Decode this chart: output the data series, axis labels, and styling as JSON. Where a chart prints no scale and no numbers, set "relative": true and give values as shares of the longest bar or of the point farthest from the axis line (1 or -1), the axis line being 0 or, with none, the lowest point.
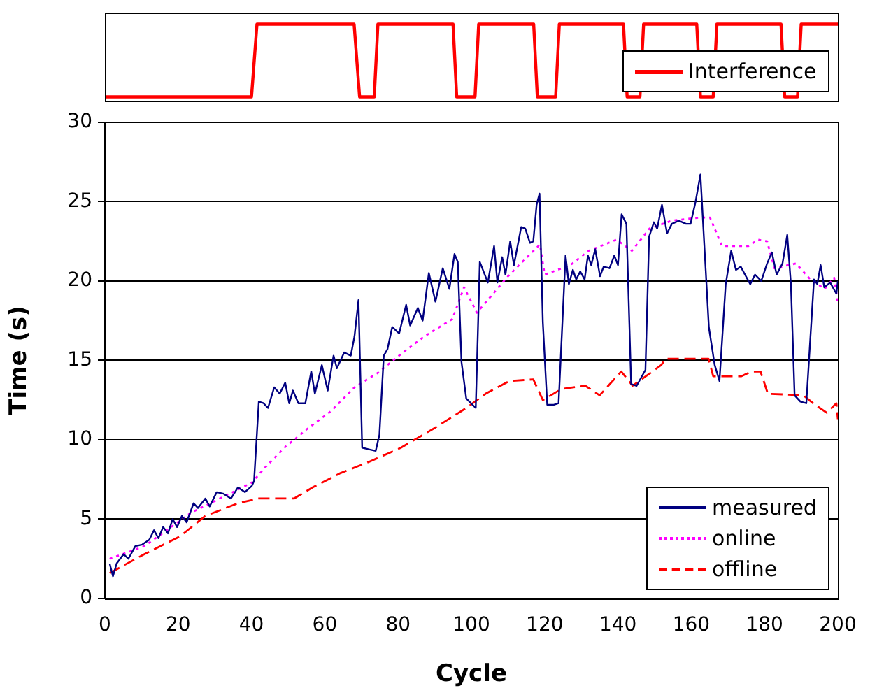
{
  "chart_data": [
    {
      "type": "line",
      "relative": true,
      "xlim": [
        0,
        200
      ],
      "tick_labels": false,
      "legend": "bottom right",
      "line_style": "solid",
      "series": [
        {
          "name": "Interference",
          "color": "#ff0000",
          "x": [
            0,
            40,
            41.5,
            68,
            69.5,
            73.5,
            74.5,
            95,
            96,
            101,
            102,
            117,
            118,
            123,
            124,
            141.5,
            142.5,
            146,
            147,
            161.5,
            162.5,
            166,
            167,
            184.5,
            185.5,
            189,
            190,
            200
          ],
          "values": [
            0.05,
            0.05,
            1,
            1,
            0.05,
            0.05,
            1,
            1,
            0.05,
            0.05,
            1,
            1,
            0.05,
            0.05,
            1,
            1,
            0.05,
            0.05,
            1,
            1,
            0.05,
            0.05,
            1,
            1,
            0.05,
            0.05,
            1,
            1
          ]
        }
      ]
    },
    {
      "type": "line",
      "xlabel": "Cycle",
      "ylabel": "Time (s)",
      "xlim": [
        0,
        200
      ],
      "xticks": [
        0,
        20,
        40,
        60,
        80,
        100,
        120,
        140,
        160,
        180,
        200
      ],
      "ylim": [
        0,
        30
      ],
      "yticks": [
        0,
        5,
        10,
        15,
        20,
        25,
        30
      ],
      "grid": "y",
      "legend": "bottom right",
      "marker": "none",
      "series": [
        {
          "name": "measured",
          "color": "#000080",
          "line_style": "solid",
          "x": [
            1.3,
            2.2,
            3.2,
            5.1,
            6.4,
            8.3,
            10.2,
            12.1,
            13.4,
            14.6,
            15.9,
            17.2,
            18.5,
            19.7,
            21.0,
            22.3,
            24.2,
            25.4,
            27.4,
            28.6,
            30.5,
            32.4,
            34.4,
            36.3,
            38.2,
            40.1,
            40.7,
            42.0,
            43.3,
            44.5,
            46.2,
            47.7,
            49.2,
            50.3,
            51.3,
            52.8,
            54.7,
            56.3,
            57.3,
            59.2,
            60.8,
            62.4,
            63.3,
            65.3,
            67.1,
            68.1,
            69.2,
            70.2,
            72.0,
            73.9,
            74.9,
            76.1,
            77.1,
            78.4,
            80.3,
            82.2,
            83.3,
            85.4,
            86.7,
            88.4,
            90.2,
            92.2,
            94.0,
            95.4,
            96.3,
            97.3,
            98.6,
            101.2,
            102.3,
            104.5,
            106.2,
            107.1,
            108.4,
            109.3,
            110.6,
            111.6,
            113.6,
            114.7,
            116.0,
            116.9,
            117.8,
            118.6,
            119.5,
            120.7,
            122.5,
            123.8,
            125.7,
            126.6,
            127.7,
            128.6,
            129.7,
            130.9,
            131.8,
            132.7,
            133.8,
            135.1,
            136.1,
            137.7,
            139.0,
            140.0,
            141.0,
            142.3,
            143.6,
            145.1,
            147.5,
            148.5,
            149.8,
            150.7,
            152.0,
            153.4,
            154.7,
            156.6,
            158.6,
            159.8,
            161.1,
            162.5,
            164.8,
            166.4,
            167.7,
            169.4,
            170.9,
            172.2,
            173.5,
            174.9,
            176.1,
            177.4,
            179.1,
            180.7,
            182.0,
            183.3,
            184.9,
            186.2,
            187.2,
            188.2,
            189.8,
            191.4,
            193.5,
            194.4,
            195.3,
            196.3,
            197.9,
            199.6,
            200
          ],
          "values": [
            2.2,
            1.4,
            2.2,
            2.8,
            2.5,
            3.3,
            3.4,
            3.7,
            4.3,
            3.8,
            4.5,
            4.1,
            5.0,
            4.5,
            5.2,
            4.8,
            6.0,
            5.7,
            6.3,
            5.8,
            6.7,
            6.6,
            6.3,
            7.0,
            6.7,
            7.1,
            7.4,
            12.4,
            12.3,
            12.0,
            13.3,
            12.9,
            13.6,
            12.3,
            13.1,
            12.3,
            12.3,
            14.3,
            12.9,
            14.7,
            13.1,
            15.3,
            14.5,
            15.5,
            15.3,
            16.5,
            18.8,
            9.5,
            9.4,
            9.3,
            10.3,
            15.3,
            15.7,
            17.1,
            16.7,
            18.5,
            17.2,
            18.3,
            17.5,
            20.5,
            18.7,
            20.8,
            19.5,
            21.7,
            21.2,
            14.9,
            12.6,
            12.0,
            21.2,
            19.9,
            22.2,
            19.9,
            21.5,
            20.4,
            22.5,
            21.0,
            23.4,
            23.3,
            22.4,
            22.5,
            24.8,
            25.5,
            17.4,
            12.2,
            12.2,
            12.3,
            21.6,
            19.8,
            20.7,
            20.1,
            20.6,
            20.1,
            21.6,
            21.0,
            22.0,
            20.3,
            20.9,
            20.8,
            21.6,
            21.0,
            24.2,
            23.6,
            13.5,
            13.4,
            14.4,
            22.8,
            23.7,
            23.3,
            24.8,
            23.0,
            23.6,
            23.8,
            23.6,
            23.6,
            24.9,
            26.7,
            17.1,
            14.7,
            13.7,
            19.8,
            21.9,
            20.7,
            20.9,
            20.3,
            19.8,
            20.4,
            20.0,
            21.1,
            21.8,
            20.4,
            21.1,
            22.9,
            19.8,
            12.8,
            12.4,
            12.3,
            20.1,
            19.8,
            21.0,
            19.6,
            19.9,
            19.2,
            20.0
          ]
        },
        {
          "name": "online",
          "color": "#ff00ff",
          "line_style": "dotted",
          "x": [
            1.3,
            10.8,
            23.5,
            40.1,
            43.9,
            49,
            55.3,
            61.7,
            68.1,
            74.4,
            80.8,
            87.1,
            94.8,
            98,
            101.5,
            110,
            118.7,
            120,
            127,
            132,
            139.6,
            143.8,
            148.6,
            154.7,
            162.5,
            165.1,
            168.4,
            175.6,
            178.2,
            180.7,
            182.7,
            188.6,
            192.5,
            196.4,
            199,
            200
          ],
          "values": [
            2.5,
            3.3,
            5.4,
            7.3,
            8.3,
            9.5,
            10.7,
            11.8,
            13.3,
            14.2,
            15.4,
            16.5,
            17.6,
            19.6,
            18.0,
            20.3,
            22.3,
            20.4,
            21.0,
            21.9,
            22.6,
            21.9,
            23.3,
            23.8,
            24.0,
            24.0,
            22.2,
            22.2,
            22.6,
            22.5,
            20.8,
            21.1,
            20.1,
            19.5,
            20.2,
            18.6
          ]
        },
        {
          "name": "offline",
          "color": "#ff0000",
          "line_style": "dashed",
          "x": [
            1.3,
            10.8,
            20.4,
            27.4,
            36.3,
            42,
            51.6,
            56.7,
            64.3,
            72,
            80.8,
            89.7,
            98.6,
            103.9,
            110.4,
            116.9,
            119.5,
            124.6,
            131.1,
            135,
            140.9,
            144,
            151.8,
            153,
            164.7,
            166,
            173.7,
            176.4,
            178.9,
            180.9,
            190.6,
            193.8,
            197,
            199.6,
            200
          ],
          "values": [
            1.6,
            2.8,
            3.9,
            5.2,
            6.0,
            6.3,
            6.3,
            7.0,
            7.9,
            8.6,
            9.5,
            10.7,
            12.0,
            12.9,
            13.7,
            13.8,
            12.5,
            13.2,
            13.4,
            12.8,
            14.3,
            13.4,
            14.7,
            15.1,
            15.1,
            14.0,
            14.0,
            14.3,
            14.3,
            12.9,
            12.8,
            12.2,
            11.7,
            12.3,
            11.3
          ]
        }
      ]
    }
  ]
}
